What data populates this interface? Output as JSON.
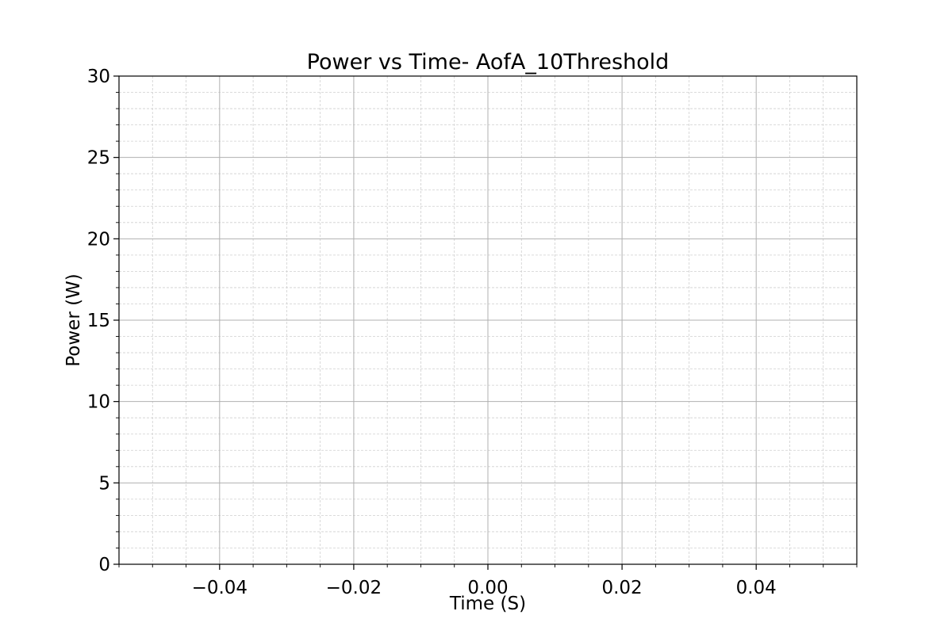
{
  "chart_data": {
    "type": "line",
    "title": "Power vs Time- AofA_10Threshold",
    "xlabel": "Time (S)",
    "ylabel": "Power (W)",
    "xlim": [
      -0.055,
      0.055
    ],
    "ylim": [
      0,
      30
    ],
    "x_ticks": [
      -0.04,
      -0.02,
      0.0,
      0.02,
      0.04
    ],
    "x_tick_labels": [
      "−0.04",
      "−0.02",
      "0.00",
      "0.02",
      "0.04"
    ],
    "x_minor_step": 0.005,
    "y_ticks": [
      0,
      5,
      10,
      15,
      20,
      25,
      30
    ],
    "y_tick_labels": [
      "0",
      "5",
      "10",
      "15",
      "20",
      "25",
      "30"
    ],
    "y_minor_step": 1,
    "grid": true,
    "series": []
  }
}
